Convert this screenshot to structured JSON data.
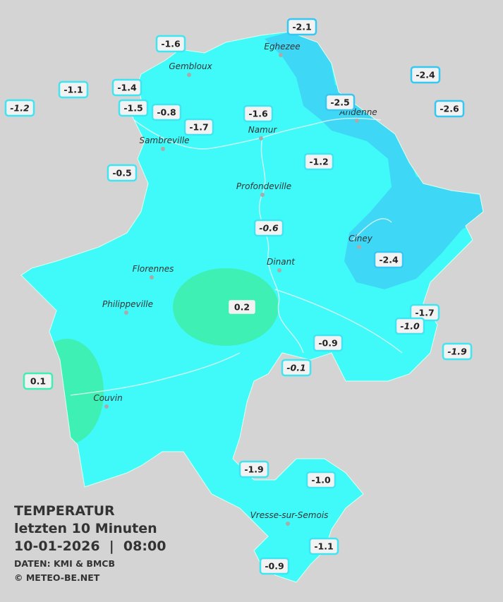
{
  "title": {
    "heading": "TEMPERATUR",
    "subheading": "letzten 10 Minuten",
    "datetime": "10-01-2026  |  08:00",
    "source": "DATEN: KMI & BMCB",
    "copyright": "© METEO-BE.NET"
  },
  "towns": [
    {
      "name": "Eghezee"
    },
    {
      "name": "Gembloux"
    },
    {
      "name": "Andenne"
    },
    {
      "name": "Namur"
    },
    {
      "name": "Sambreville"
    },
    {
      "name": "Profondeville"
    },
    {
      "name": "Ciney"
    },
    {
      "name": "Dinant"
    },
    {
      "name": "Florennes"
    },
    {
      "name": "Philippeville"
    },
    {
      "name": "Couvin"
    },
    {
      "name": "Vresse-sur-Semois"
    }
  ],
  "stations": [
    {
      "text": "-2.1",
      "italic": false
    },
    {
      "text": "-1.6",
      "italic": false
    },
    {
      "text": "-1.1",
      "italic": false
    },
    {
      "text": "-1.4",
      "italic": false
    },
    {
      "text": "-1.2",
      "italic": true
    },
    {
      "text": "-1.5",
      "italic": false
    },
    {
      "text": "-0.8",
      "italic": false
    },
    {
      "text": "-1.7",
      "italic": false
    },
    {
      "text": "-1.6",
      "italic": false
    },
    {
      "text": "-2.5",
      "italic": false
    },
    {
      "text": "-2.4",
      "italic": false
    },
    {
      "text": "-2.6",
      "italic": false
    },
    {
      "text": "-0.5",
      "italic": false
    },
    {
      "text": "-1.2",
      "italic": false
    },
    {
      "text": "-0.6",
      "italic": true
    },
    {
      "text": "-2.4",
      "italic": false
    },
    {
      "text": "0.2",
      "italic": false
    },
    {
      "text": "-1.7",
      "italic": false
    },
    {
      "text": "-1.0",
      "italic": true
    },
    {
      "text": "-0.9",
      "italic": false
    },
    {
      "text": "-1.9",
      "italic": true
    },
    {
      "text": "-0.1",
      "italic": true
    },
    {
      "text": "0.1",
      "italic": false
    },
    {
      "text": "-1.9",
      "italic": false
    },
    {
      "text": "-1.0",
      "italic": false
    },
    {
      "text": "-1.1",
      "italic": false
    },
    {
      "text": "-0.9",
      "italic": false
    }
  ]
}
